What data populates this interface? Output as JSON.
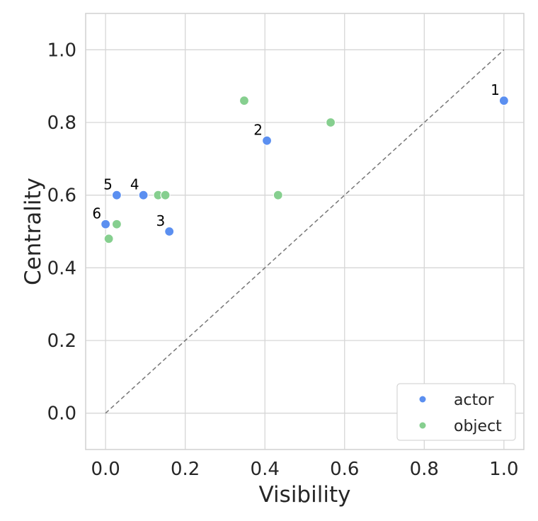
{
  "chart_data": {
    "type": "scatter",
    "xlabel": "Visibility",
    "ylabel": "Centrality",
    "xlim": [
      -0.05,
      1.05
    ],
    "ylim": [
      -0.1,
      1.1
    ],
    "xticks": [
      0.0,
      0.2,
      0.4,
      0.6,
      0.8,
      1.0
    ],
    "yticks": [
      0.0,
      0.2,
      0.4,
      0.6,
      0.8,
      1.0
    ],
    "xtick_labels": [
      "0.0",
      "0.2",
      "0.4",
      "0.6",
      "0.8",
      "1.0"
    ],
    "ytick_labels": [
      "0.0",
      "0.2",
      "0.4",
      "0.6",
      "0.8",
      "1.0"
    ],
    "grid": true,
    "legend_position": "bottom-right",
    "reference_line": {
      "style": "dashed",
      "from": [
        0,
        0
      ],
      "to": [
        1,
        1
      ],
      "color": "#777777"
    },
    "series": [
      {
        "name": "actor",
        "color": "#5b8ff0",
        "points": [
          {
            "x": 1.0,
            "y": 0.86,
            "label": "1"
          },
          {
            "x": 0.405,
            "y": 0.75,
            "label": "2"
          },
          {
            "x": 0.16,
            "y": 0.5,
            "label": "3"
          },
          {
            "x": 0.095,
            "y": 0.6,
            "label": "4"
          },
          {
            "x": 0.028,
            "y": 0.6,
            "label": "5"
          },
          {
            "x": 0.0,
            "y": 0.52,
            "label": "6"
          }
        ]
      },
      {
        "name": "object",
        "color": "#86cf8f",
        "points": [
          {
            "x": 0.348,
            "y": 0.86
          },
          {
            "x": 0.565,
            "y": 0.8
          },
          {
            "x": 0.433,
            "y": 0.6
          },
          {
            "x": 0.132,
            "y": 0.6
          },
          {
            "x": 0.15,
            "y": 0.6
          },
          {
            "x": 0.028,
            "y": 0.52
          },
          {
            "x": 0.008,
            "y": 0.48
          }
        ]
      }
    ]
  }
}
